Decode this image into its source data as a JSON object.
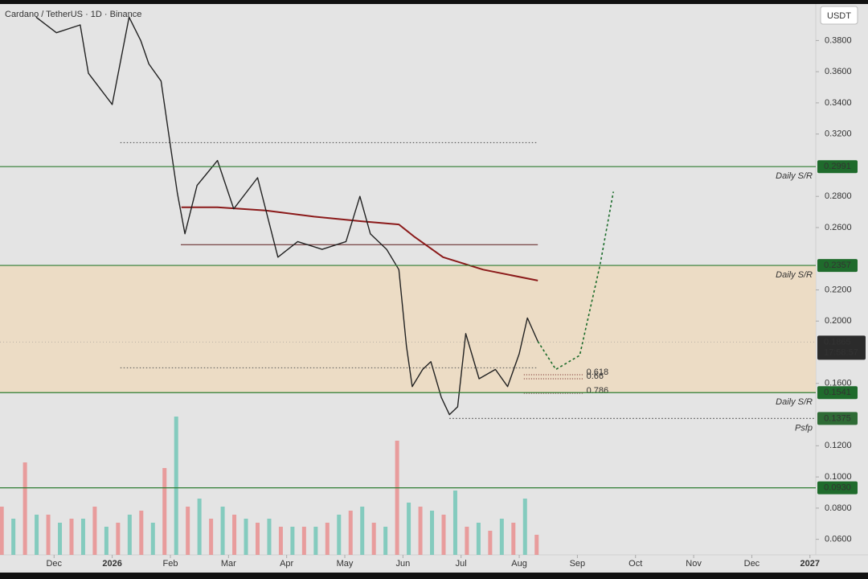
{
  "chart_data": {
    "type": "line",
    "title": "Cardano / TetherUS · 1D · Binance",
    "currency": "USDT",
    "xlim": [
      0.07,
      14.1
    ],
    "xticks": [
      {
        "value": 1,
        "label": "Dec"
      },
      {
        "value": 2,
        "label": "2026"
      },
      {
        "value": 3,
        "label": "Feb"
      },
      {
        "value": 4,
        "label": "Mar"
      },
      {
        "value": 5,
        "label": "Apr"
      },
      {
        "value": 6,
        "label": "May"
      },
      {
        "value": 7,
        "label": "Jun"
      },
      {
        "value": 8,
        "label": "Jul"
      },
      {
        "value": 9,
        "label": "Aug"
      },
      {
        "value": 10,
        "label": "Sep"
      },
      {
        "value": 11,
        "label": "Oct"
      },
      {
        "value": 12,
        "label": "Nov"
      },
      {
        "value": 13,
        "label": "Dec"
      },
      {
        "value": 14,
        "label": "2027"
      }
    ],
    "ylim": [
      0.05,
      0.406
    ],
    "yticks": [
      {
        "value": 0.38,
        "label": "0.3800"
      },
      {
        "value": 0.36,
        "label": "0.3600"
      },
      {
        "value": 0.34,
        "label": "0.3400"
      },
      {
        "value": 0.32,
        "label": "0.3200"
      },
      {
        "value": 0.28,
        "label": "0.2800"
      },
      {
        "value": 0.26,
        "label": "0.2600"
      },
      {
        "value": 0.22,
        "label": "0.2200"
      },
      {
        "value": 0.2,
        "label": "0.2000"
      },
      {
        "value": 0.16,
        "label": "0.1600"
      },
      {
        "value": 0.12,
        "label": "0.1200"
      },
      {
        "value": 0.1,
        "label": "0.1000"
      },
      {
        "value": 0.08,
        "label": "0.0800"
      },
      {
        "value": 0.06,
        "label": "0.0600"
      }
    ],
    "zone": {
      "from": 0.1541,
      "to": 0.2357,
      "color": "#efd9bb"
    },
    "price": {
      "color": "#222222",
      "x": [
        0.69,
        1.04,
        1.45,
        1.59,
        2.0,
        2.29,
        2.49,
        2.63,
        2.84,
        2.98,
        3.12,
        3.25,
        3.46,
        3.81,
        4.09,
        4.5,
        4.85,
        5.19,
        5.61,
        6.02,
        6.26,
        6.44,
        6.72,
        6.93,
        7.06,
        7.16,
        7.34,
        7.48,
        7.66,
        7.8,
        7.94,
        8.08,
        8.31,
        8.59,
        8.8,
        9.0,
        9.14,
        9.32
      ],
      "values": [
        0.395,
        0.385,
        0.39,
        0.359,
        0.339,
        0.395,
        0.38,
        0.365,
        0.354,
        0.318,
        0.282,
        0.256,
        0.287,
        0.303,
        0.272,
        0.292,
        0.241,
        0.251,
        0.246,
        0.251,
        0.28,
        0.256,
        0.246,
        0.233,
        0.184,
        0.158,
        0.169,
        0.174,
        0.151,
        0.14,
        0.145,
        0.192,
        0.163,
        0.169,
        0.158,
        0.179,
        0.202,
        0.187
      ]
    },
    "moving_average": {
      "color": "#8b1a1a",
      "x": [
        3.19,
        3.81,
        4.64,
        5.47,
        6.3,
        6.93,
        7.2,
        7.69,
        8.38,
        9.32
      ],
      "values": [
        0.273,
        0.273,
        0.271,
        0.267,
        0.264,
        0.262,
        0.254,
        0.241,
        0.233,
        0.226
      ]
    },
    "projection": {
      "color": "#1b6b2a",
      "x": [
        9.32,
        9.63,
        10.04,
        10.39,
        10.62
      ],
      "values": [
        0.187,
        0.169,
        0.178,
        0.236,
        0.283
      ]
    },
    "levels": [
      {
        "price": 0.2991,
        "label": "Daily S/R",
        "color": "#2e7d32",
        "style": "solid"
      },
      {
        "price": 0.2357,
        "label": "Daily S/R",
        "color": "#2e7d32",
        "style": "solid"
      },
      {
        "price": 0.1541,
        "label": "Daily S/R",
        "color": "#2e7d32",
        "style": "solid"
      },
      {
        "price": 0.1375,
        "label": "Psfp",
        "color": "#555555",
        "style": "dotted",
        "from": 7.8
      },
      {
        "price": {
          "value": 0.093,
          "label": "0.0930"
        },
        "color": "#2e7d32",
        "style": "solid"
      }
    ],
    "reference_lines": [
      {
        "price": 0.3145,
        "from": 2.14,
        "to": 9.32,
        "color": "#444444",
        "style": "dotted"
      },
      {
        "price": 0.249,
        "from": 3.18,
        "to": 9.32,
        "color": "#5a1a1a",
        "style": "solid"
      },
      {
        "price": 0.17,
        "from": 2.14,
        "to": 9.32,
        "color": "#555555",
        "style": "dotted"
      }
    ],
    "fib": {
      "from": 9.08,
      "to": 10.1,
      "color": "#6b1a1a",
      "levels": [
        {
          "ratio": 0.618,
          "price": 0.1656
        },
        {
          "ratio": 0.66,
          "price": 0.163
        },
        {
          "ratio": 0.786,
          "price": 0.1537
        }
      ]
    },
    "last_price": 0.1865,
    "countdown": "17:58:57",
    "volume_lim": [
      0,
      180
    ],
    "volume": [
      {
        "color": "#e88a8a",
        "x": [
          0.1,
          0.5,
          0.9,
          1.3,
          1.7,
          2.1,
          2.5,
          2.9,
          3.3,
          3.7,
          4.1,
          4.5,
          4.9,
          5.3,
          5.7,
          6.1,
          6.5,
          6.9,
          7.3,
          7.7,
          8.1,
          8.5,
          8.9,
          9.3
        ],
        "values": [
          60,
          115,
          50,
          45,
          60,
          40,
          55,
          108,
          60,
          45,
          50,
          40,
          35,
          35,
          40,
          55,
          40,
          142,
          60,
          50,
          35,
          30,
          40,
          25
        ]
      },
      {
        "color": "#6cc4b4",
        "x": [
          0.3,
          0.7,
          1.1,
          1.5,
          1.9,
          2.3,
          2.7,
          3.1,
          3.5,
          3.9,
          4.3,
          4.7,
          5.1,
          5.5,
          5.9,
          6.3,
          6.7,
          7.1,
          7.5,
          7.9,
          8.3,
          8.7,
          9.1
        ],
        "values": [
          45,
          50,
          40,
          45,
          35,
          50,
          40,
          172,
          70,
          60,
          45,
          45,
          35,
          35,
          50,
          60,
          35,
          65,
          55,
          80,
          40,
          45,
          70
        ]
      }
    ]
  }
}
